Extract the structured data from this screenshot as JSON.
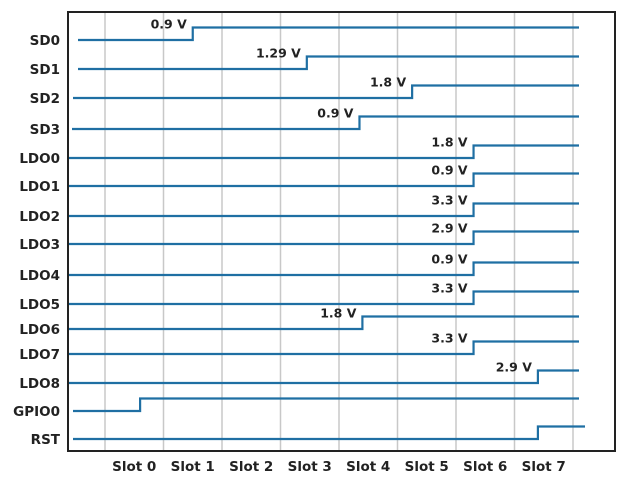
{
  "diagram": {
    "signal_color": "#1f6fa3",
    "grid_color": "#c8c8c8",
    "slots": [
      "Slot 0",
      "Slot 1",
      "Slot 2",
      "Slot 3",
      "Slot 4",
      "Slot 5",
      "Slot 6",
      "Slot 7"
    ],
    "signals": [
      {
        "name": "SD0",
        "voltage": "0.9 V",
        "step_slot": 1.5
      },
      {
        "name": "SD1",
        "voltage": "1.29 V",
        "step_slot": 3.45
      },
      {
        "name": "SD2",
        "voltage": "1.8 V",
        "step_slot": 5.25
      },
      {
        "name": "SD3",
        "voltage": "0.9 V",
        "step_slot": 4.35
      },
      {
        "name": "LDO0",
        "voltage": "1.8 V",
        "step_slot": 6.3
      },
      {
        "name": "LDO1",
        "voltage": "0.9 V",
        "step_slot": 6.3
      },
      {
        "name": "LDO2",
        "voltage": "3.3 V",
        "step_slot": 6.3
      },
      {
        "name": "LDO3",
        "voltage": "2.9 V",
        "step_slot": 6.3
      },
      {
        "name": "LDO4",
        "voltage": "0.9 V",
        "step_slot": 6.3
      },
      {
        "name": "LDO5",
        "voltage": "3.3 V",
        "step_slot": 6.3
      },
      {
        "name": "LDO6",
        "voltage": "1.8 V",
        "step_slot": 4.4
      },
      {
        "name": "LDO7",
        "voltage": "3.3 V",
        "step_slot": 6.3
      },
      {
        "name": "LDO8",
        "voltage": "2.9 V",
        "step_slot": 7.4
      },
      {
        "name": "GPIO0",
        "voltage": "",
        "step_slot": 0.6
      },
      {
        "name": "RST",
        "voltage": "",
        "step_slot": 7.4
      }
    ]
  }
}
